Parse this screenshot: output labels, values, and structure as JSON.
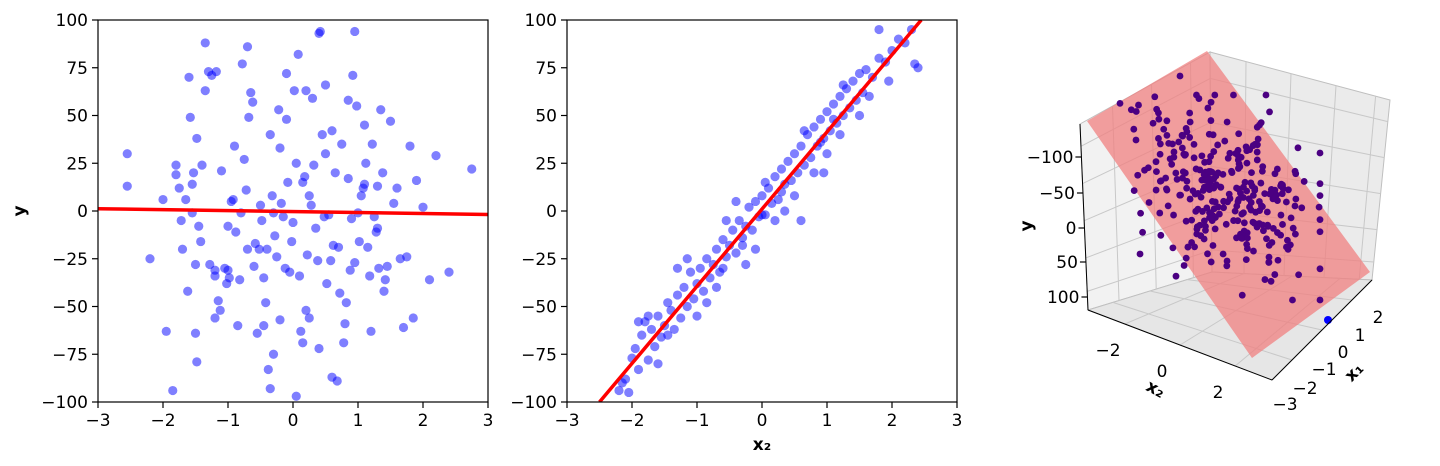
{
  "chart_data": [
    {
      "type": "scatter",
      "xlabel": "",
      "ylabel": "y",
      "xlim": [
        -3,
        3
      ],
      "ylim": [
        -100,
        100
      ],
      "xticks": [
        -3,
        -2,
        -1,
        0,
        1,
        2,
        3
      ],
      "yticks": [
        -100,
        -75,
        -50,
        -25,
        0,
        25,
        50,
        75,
        100
      ],
      "point_color": "#0000ff",
      "point_alpha": 0.5,
      "fit_line": {
        "color": "#ff0000",
        "x": [
          -3,
          3
        ],
        "y": [
          1.2,
          -1.8
        ]
      },
      "points": [
        [
          -2.55,
          30
        ],
        [
          -2.55,
          13
        ],
        [
          -2.2,
          -25
        ],
        [
          -2.0,
          6
        ],
        [
          -1.95,
          -63
        ],
        [
          -1.85,
          -94
        ],
        [
          -1.8,
          24
        ],
        [
          -1.8,
          19
        ],
        [
          -1.75,
          12
        ],
        [
          -1.72,
          -5
        ],
        [
          -1.7,
          -20
        ],
        [
          -1.65,
          6
        ],
        [
          -1.62,
          -42
        ],
        [
          -1.6,
          70
        ],
        [
          -1.58,
          49
        ],
        [
          -1.55,
          14
        ],
        [
          -1.55,
          -1
        ],
        [
          -1.53,
          20
        ],
        [
          -1.5,
          -28
        ],
        [
          -1.5,
          -64
        ],
        [
          -1.48,
          38
        ],
        [
          -1.48,
          -79
        ],
        [
          -1.45,
          -8
        ],
        [
          -1.42,
          -16
        ],
        [
          -1.4,
          24
        ],
        [
          -1.35,
          88
        ],
        [
          -1.3,
          73
        ],
        [
          -1.28,
          -28
        ],
        [
          -1.25,
          71
        ],
        [
          -1.2,
          -31
        ],
        [
          -1.2,
          -34
        ],
        [
          -1.18,
          73
        ],
        [
          -1.15,
          -47
        ],
        [
          -1.12,
          -52
        ],
        [
          -1.1,
          21
        ],
        [
          -1.05,
          -30
        ],
        [
          -1.02,
          -38
        ],
        [
          -1.0,
          -8
        ],
        [
          -0.98,
          -35
        ],
        [
          -0.95,
          5
        ],
        [
          -0.92,
          6
        ],
        [
          -0.9,
          34
        ],
        [
          -0.88,
          -11
        ],
        [
          -0.85,
          -60
        ],
        [
          -0.82,
          -36
        ],
        [
          -0.8,
          -1
        ],
        [
          -0.78,
          77
        ],
        [
          -0.75,
          27
        ],
        [
          -0.72,
          11
        ],
        [
          -0.7,
          -20
        ],
        [
          -0.68,
          49
        ],
        [
          -0.65,
          62
        ],
        [
          -0.62,
          57
        ],
        [
          -0.6,
          -29
        ],
        [
          -0.58,
          -17
        ],
        [
          -0.55,
          -64
        ],
        [
          -0.52,
          -20
        ],
        [
          -0.5,
          3
        ],
        [
          -0.48,
          -5
        ],
        [
          -0.45,
          -35
        ],
        [
          -0.42,
          -48
        ],
        [
          -0.4,
          -20
        ],
        [
          -0.38,
          -83
        ],
        [
          -0.35,
          -93
        ],
        [
          -0.35,
          40
        ],
        [
          -0.32,
          8
        ],
        [
          -0.3,
          -1
        ],
        [
          -0.28,
          -13
        ],
        [
          -0.25,
          -24
        ],
        [
          -0.22,
          53
        ],
        [
          -0.2,
          33
        ],
        [
          -0.2,
          -57
        ],
        [
          -0.18,
          4
        ],
        [
          -0.15,
          -3
        ],
        [
          -0.12,
          -30
        ],
        [
          -0.1,
          48
        ],
        [
          -0.08,
          15
        ],
        [
          -0.05,
          -32
        ],
        [
          -0.02,
          -16
        ],
        [
          0.0,
          -6
        ],
        [
          0.02,
          63
        ],
        [
          0.05,
          25
        ],
        [
          0.08,
          82
        ],
        [
          0.1,
          -34
        ],
        [
          0.12,
          -63
        ],
        [
          0.15,
          15
        ],
        [
          0.18,
          18
        ],
        [
          0.2,
          -52
        ],
        [
          0.22,
          -23
        ],
        [
          0.25,
          -56
        ],
        [
          0.28,
          3
        ],
        [
          0.3,
          59
        ],
        [
          0.32,
          24
        ],
        [
          0.35,
          -9
        ],
        [
          0.38,
          -26
        ],
        [
          0.4,
          -72
        ],
        [
          0.42,
          94
        ],
        [
          0.45,
          40
        ],
        [
          0.48,
          -3
        ],
        [
          0.5,
          30
        ],
        [
          0.52,
          -38
        ],
        [
          0.55,
          -2
        ],
        [
          0.58,
          -26
        ],
        [
          0.6,
          42
        ],
        [
          0.62,
          -18
        ],
        [
          0.65,
          20
        ],
        [
          0.68,
          -89
        ],
        [
          0.7,
          -19
        ],
        [
          0.72,
          -43
        ],
        [
          0.75,
          35
        ],
        [
          0.78,
          -69
        ],
        [
          0.8,
          -59
        ],
        [
          0.82,
          -48
        ],
        [
          0.85,
          17
        ],
        [
          0.88,
          -31
        ],
        [
          0.9,
          -4
        ],
        [
          0.92,
          71
        ],
        [
          0.95,
          -27
        ],
        [
          0.98,
          55
        ],
        [
          1.0,
          -1
        ],
        [
          1.02,
          -16
        ],
        [
          1.05,
          8
        ],
        [
          1.08,
          12
        ],
        [
          1.1,
          45
        ],
        [
          1.12,
          25
        ],
        [
          1.15,
          -19
        ],
        [
          1.18,
          -34
        ],
        [
          1.2,
          -63
        ],
        [
          1.22,
          35
        ],
        [
          1.25,
          -3
        ],
        [
          1.28,
          -11
        ],
        [
          1.3,
          13
        ],
        [
          1.32,
          -30
        ],
        [
          1.35,
          53
        ],
        [
          1.38,
          20
        ],
        [
          1.4,
          -42
        ],
        [
          1.42,
          -36
        ],
        [
          1.45,
          -29
        ],
        [
          1.5,
          47
        ],
        [
          1.55,
          4
        ],
        [
          1.6,
          12
        ],
        [
          1.65,
          -25
        ],
        [
          1.7,
          -61
        ],
        [
          1.75,
          -24
        ],
        [
          1.8,
          34
        ],
        [
          1.85,
          -56
        ],
        [
          1.9,
          16
        ],
        [
          2.0,
          2
        ],
        [
          2.1,
          -36
        ],
        [
          2.2,
          29
        ],
        [
          2.4,
          -32
        ],
        [
          2.75,
          22
        ],
        [
          0.95,
          94
        ],
        [
          0.4,
          93
        ],
        [
          -0.1,
          72
        ],
        [
          0.5,
          66
        ],
        [
          -0.7,
          86
        ],
        [
          0.2,
          63
        ],
        [
          -1.35,
          63
        ],
        [
          0.85,
          58
        ],
        [
          -0.3,
          -75
        ],
        [
          0.15,
          -69
        ],
        [
          0.05,
          -97
        ],
        [
          0.6,
          -87
        ],
        [
          -1.2,
          -56
        ],
        [
          1.1,
          14
        ],
        [
          0.25,
          8
        ],
        [
          -0.45,
          -60
        ],
        [
          1.3,
          -9
        ],
        [
          -1.0,
          -31
        ]
      ]
    },
    {
      "type": "scatter",
      "xlabel": "x₂",
      "ylabel": "",
      "xlim": [
        -3,
        3
      ],
      "ylim": [
        -100,
        100
      ],
      "xticks": [
        -3,
        -2,
        -1,
        0,
        1,
        2,
        3
      ],
      "yticks": [
        -100,
        -75,
        -50,
        -25,
        0,
        25,
        50,
        75,
        100
      ],
      "point_color": "#0000ff",
      "point_alpha": 0.5,
      "fit_line": {
        "color": "#ff0000",
        "x": [
          -2.5,
          2.45
        ],
        "y": [
          -100,
          100
        ]
      },
      "points": [
        [
          -2.2,
          -94
        ],
        [
          -2.1,
          -88
        ],
        [
          -2.05,
          -95
        ],
        [
          -2.0,
          -77
        ],
        [
          -1.95,
          -72
        ],
        [
          -1.9,
          -83
        ],
        [
          -1.85,
          -65
        ],
        [
          -1.8,
          -58
        ],
        [
          -1.75,
          -78
        ],
        [
          -1.7,
          -62
        ],
        [
          -1.65,
          -71
        ],
        [
          -1.6,
          -55
        ],
        [
          -1.55,
          -66
        ],
        [
          -1.5,
          -60
        ],
        [
          -1.45,
          -48
        ],
        [
          -1.4,
          -52
        ],
        [
          -1.35,
          -62
        ],
        [
          -1.3,
          -44
        ],
        [
          -1.25,
          -56
        ],
        [
          -1.2,
          -40
        ],
        [
          -1.15,
          -50
        ],
        [
          -1.1,
          -32
        ],
        [
          -1.05,
          -46
        ],
        [
          -1.0,
          -38
        ],
        [
          -0.95,
          -30
        ],
        [
          -0.9,
          -42
        ],
        [
          -0.85,
          -25
        ],
        [
          -0.8,
          -35
        ],
        [
          -0.75,
          -28
        ],
        [
          -0.7,
          -20
        ],
        [
          -0.65,
          -32
        ],
        [
          -0.6,
          -15
        ],
        [
          -0.55,
          -24
        ],
        [
          -0.5,
          -18
        ],
        [
          -0.45,
          -10
        ],
        [
          -0.4,
          -22
        ],
        [
          -0.35,
          -5
        ],
        [
          -0.3,
          -14
        ],
        [
          -0.25,
          -8
        ],
        [
          -0.2,
          2
        ],
        [
          -0.15,
          -10
        ],
        [
          -0.1,
          5
        ],
        [
          -0.05,
          -3
        ],
        [
          0.0,
          8
        ],
        [
          0.05,
          -2
        ],
        [
          0.1,
          12
        ],
        [
          0.15,
          4
        ],
        [
          0.2,
          18
        ],
        [
          0.25,
          6
        ],
        [
          0.3,
          22
        ],
        [
          0.35,
          14
        ],
        [
          0.4,
          26
        ],
        [
          0.45,
          16
        ],
        [
          0.5,
          30
        ],
        [
          0.55,
          20
        ],
        [
          0.6,
          34
        ],
        [
          0.65,
          24
        ],
        [
          0.7,
          40
        ],
        [
          0.75,
          28
        ],
        [
          0.8,
          44
        ],
        [
          0.85,
          34
        ],
        [
          0.9,
          48
        ],
        [
          0.95,
          38
        ],
        [
          1.0,
          52
        ],
        [
          1.05,
          42
        ],
        [
          1.1,
          56
        ],
        [
          1.15,
          46
        ],
        [
          1.2,
          60
        ],
        [
          1.25,
          50
        ],
        [
          1.3,
          64
        ],
        [
          1.35,
          54
        ],
        [
          1.4,
          68
        ],
        [
          1.45,
          58
        ],
        [
          1.5,
          72
        ],
        [
          1.55,
          62
        ],
        [
          1.6,
          74
        ],
        [
          1.7,
          70
        ],
        [
          1.8,
          80
        ],
        [
          1.9,
          78
        ],
        [
          2.0,
          84
        ],
        [
          2.1,
          90
        ],
        [
          2.2,
          88
        ],
        [
          2.3,
          95
        ],
        [
          2.35,
          77
        ],
        [
          2.4,
          75
        ],
        [
          1.8,
          95
        ],
        [
          -1.9,
          -58
        ],
        [
          -1.6,
          -80
        ],
        [
          -1.3,
          -30
        ],
        [
          -1.0,
          -55
        ],
        [
          -0.7,
          -40
        ],
        [
          -0.4,
          5
        ],
        [
          -0.1,
          -20
        ],
        [
          0.2,
          -5
        ],
        [
          0.5,
          8
        ],
        [
          0.6,
          -5
        ],
        [
          0.8,
          20
        ],
        [
          1.0,
          30
        ],
        [
          1.2,
          40
        ],
        [
          1.5,
          50
        ],
        [
          -2.15,
          -90
        ],
        [
          -1.75,
          -55
        ],
        [
          -1.45,
          -65
        ],
        [
          -1.15,
          -25
        ],
        [
          -0.85,
          -48
        ],
        [
          -0.55,
          -5
        ],
        [
          -0.25,
          -28
        ],
        [
          0.05,
          15
        ],
        [
          0.35,
          0
        ],
        [
          0.65,
          42
        ],
        [
          0.95,
          20
        ],
        [
          1.25,
          66
        ],
        [
          1.65,
          60
        ],
        [
          1.95,
          68
        ],
        [
          -0.6,
          -30
        ],
        [
          -0.3,
          -18
        ],
        [
          0.0,
          -2
        ],
        [
          0.3,
          10
        ],
        [
          0.9,
          36
        ],
        [
          1.1,
          48
        ]
      ]
    },
    {
      "type": "scatter",
      "xlabel": "x₁",
      "ylabel": "y",
      "zlabel": "x₂",
      "xticks": [
        -3,
        -2,
        -1,
        0,
        1,
        2
      ],
      "yticks": [
        -100,
        -50,
        0,
        50,
        100
      ],
      "zticks": [
        -2,
        0,
        2
      ],
      "point_color": "#4b0082",
      "plane_color": "#f08080",
      "outlier_point": {
        "color": "#0000ff"
      }
    }
  ]
}
